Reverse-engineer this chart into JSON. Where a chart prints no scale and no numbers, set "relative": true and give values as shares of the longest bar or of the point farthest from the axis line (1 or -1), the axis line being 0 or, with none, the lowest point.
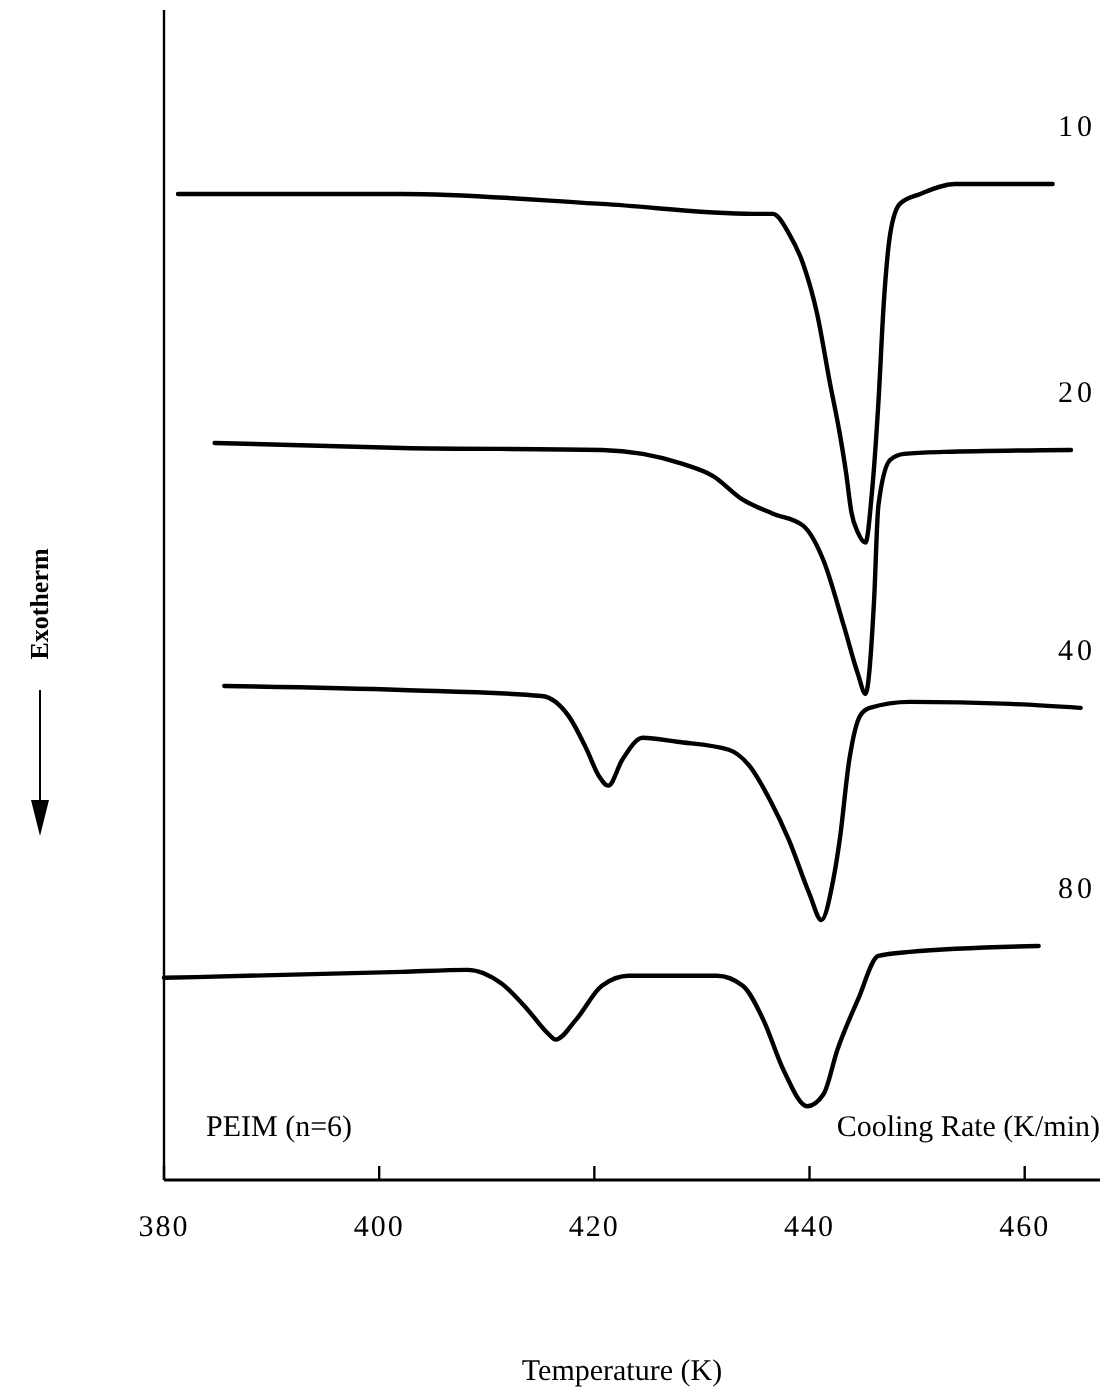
{
  "chart_data": {
    "type": "line",
    "relative": true,
    "xlabel": "Temperature (K)",
    "ylabel": "Exotherm",
    "xlim": [
      380,
      467
    ],
    "xticks": [
      380,
      400,
      420,
      440,
      460
    ],
    "annotations": [
      "PEIM (n=6)",
      "Cooling Rate (K/min)"
    ],
    "series": [
      {
        "name": "10",
        "color": "#000000",
        "x": [
          381.3,
          402.1,
          420.7,
          434.8,
          436.6,
          438.1,
          439.4,
          440.7,
          441.9,
          442.8,
          443.4,
          443.9,
          444.5,
          445.2,
          445.8,
          446.4,
          446.9,
          447.5,
          448.4,
          450.3,
          453.5,
          462.6
        ],
        "values": [
          0.99,
          0.99,
          0.98,
          0.97,
          0.97,
          0.95,
          0.92,
          0.87,
          0.8,
          0.75,
          0.71,
          0.67,
          0.65,
          0.64,
          0.69,
          0.78,
          0.88,
          0.95,
          0.98,
          0.99,
          1.0,
          1.0
        ]
      },
      {
        "name": "20",
        "color": "#000000",
        "x": [
          384.7,
          402.1,
          420.7,
          424.5,
          428.2,
          431.0,
          433.8,
          436.6,
          439.4,
          441.3,
          443.2,
          444.5,
          445.2,
          446.0,
          446.4,
          447.5,
          448.8,
          452.5,
          464.3
        ],
        "values": [
          0.74,
          0.735,
          0.733,
          0.729,
          0.719,
          0.707,
          0.683,
          0.669,
          0.657,
          0.622,
          0.556,
          0.508,
          0.488,
          0.582,
          0.677,
          0.723,
          0.729,
          0.731,
          0.733
        ]
      },
      {
        "name": "40",
        "color": "#000000",
        "x": [
          385.6,
          402.1,
          415.1,
          417.6,
          419.3,
          420.4,
          421.3,
          422.6,
          424.5,
          427.7,
          432.5,
          434.4,
          436.3,
          438.1,
          440.0,
          441.1,
          442.2,
          442.8,
          443.7,
          444.7,
          445.6,
          449.3,
          458.7,
          465.2
        ],
        "values": [
          0.496,
          0.492,
          0.486,
          0.466,
          0.432,
          0.406,
          0.396,
          0.422,
          0.444,
          0.44,
          0.432,
          0.416,
          0.382,
          0.341,
          0.287,
          0.261,
          0.301,
          0.341,
          0.422,
          0.466,
          0.474,
          0.48,
          0.478,
          0.474
        ]
      },
      {
        "name": "80",
        "color": "#000000",
        "x": [
          380.0,
          402.1,
          408.2,
          411.4,
          413.8,
          415.7,
          416.4,
          418.3,
          420.7,
          423.2,
          431.4,
          433.8,
          435.7,
          437.6,
          439.8,
          441.3,
          442.6,
          444.5,
          446.4,
          449.3,
          461.3
        ],
        "values": [
          0.203,
          0.209,
          0.211,
          0.197,
          0.171,
          0.147,
          0.141,
          0.161,
          0.195,
          0.205,
          0.205,
          0.195,
          0.161,
          0.11,
          0.074,
          0.086,
          0.131,
          0.181,
          0.225,
          0.229,
          0.235
        ]
      }
    ]
  }
}
